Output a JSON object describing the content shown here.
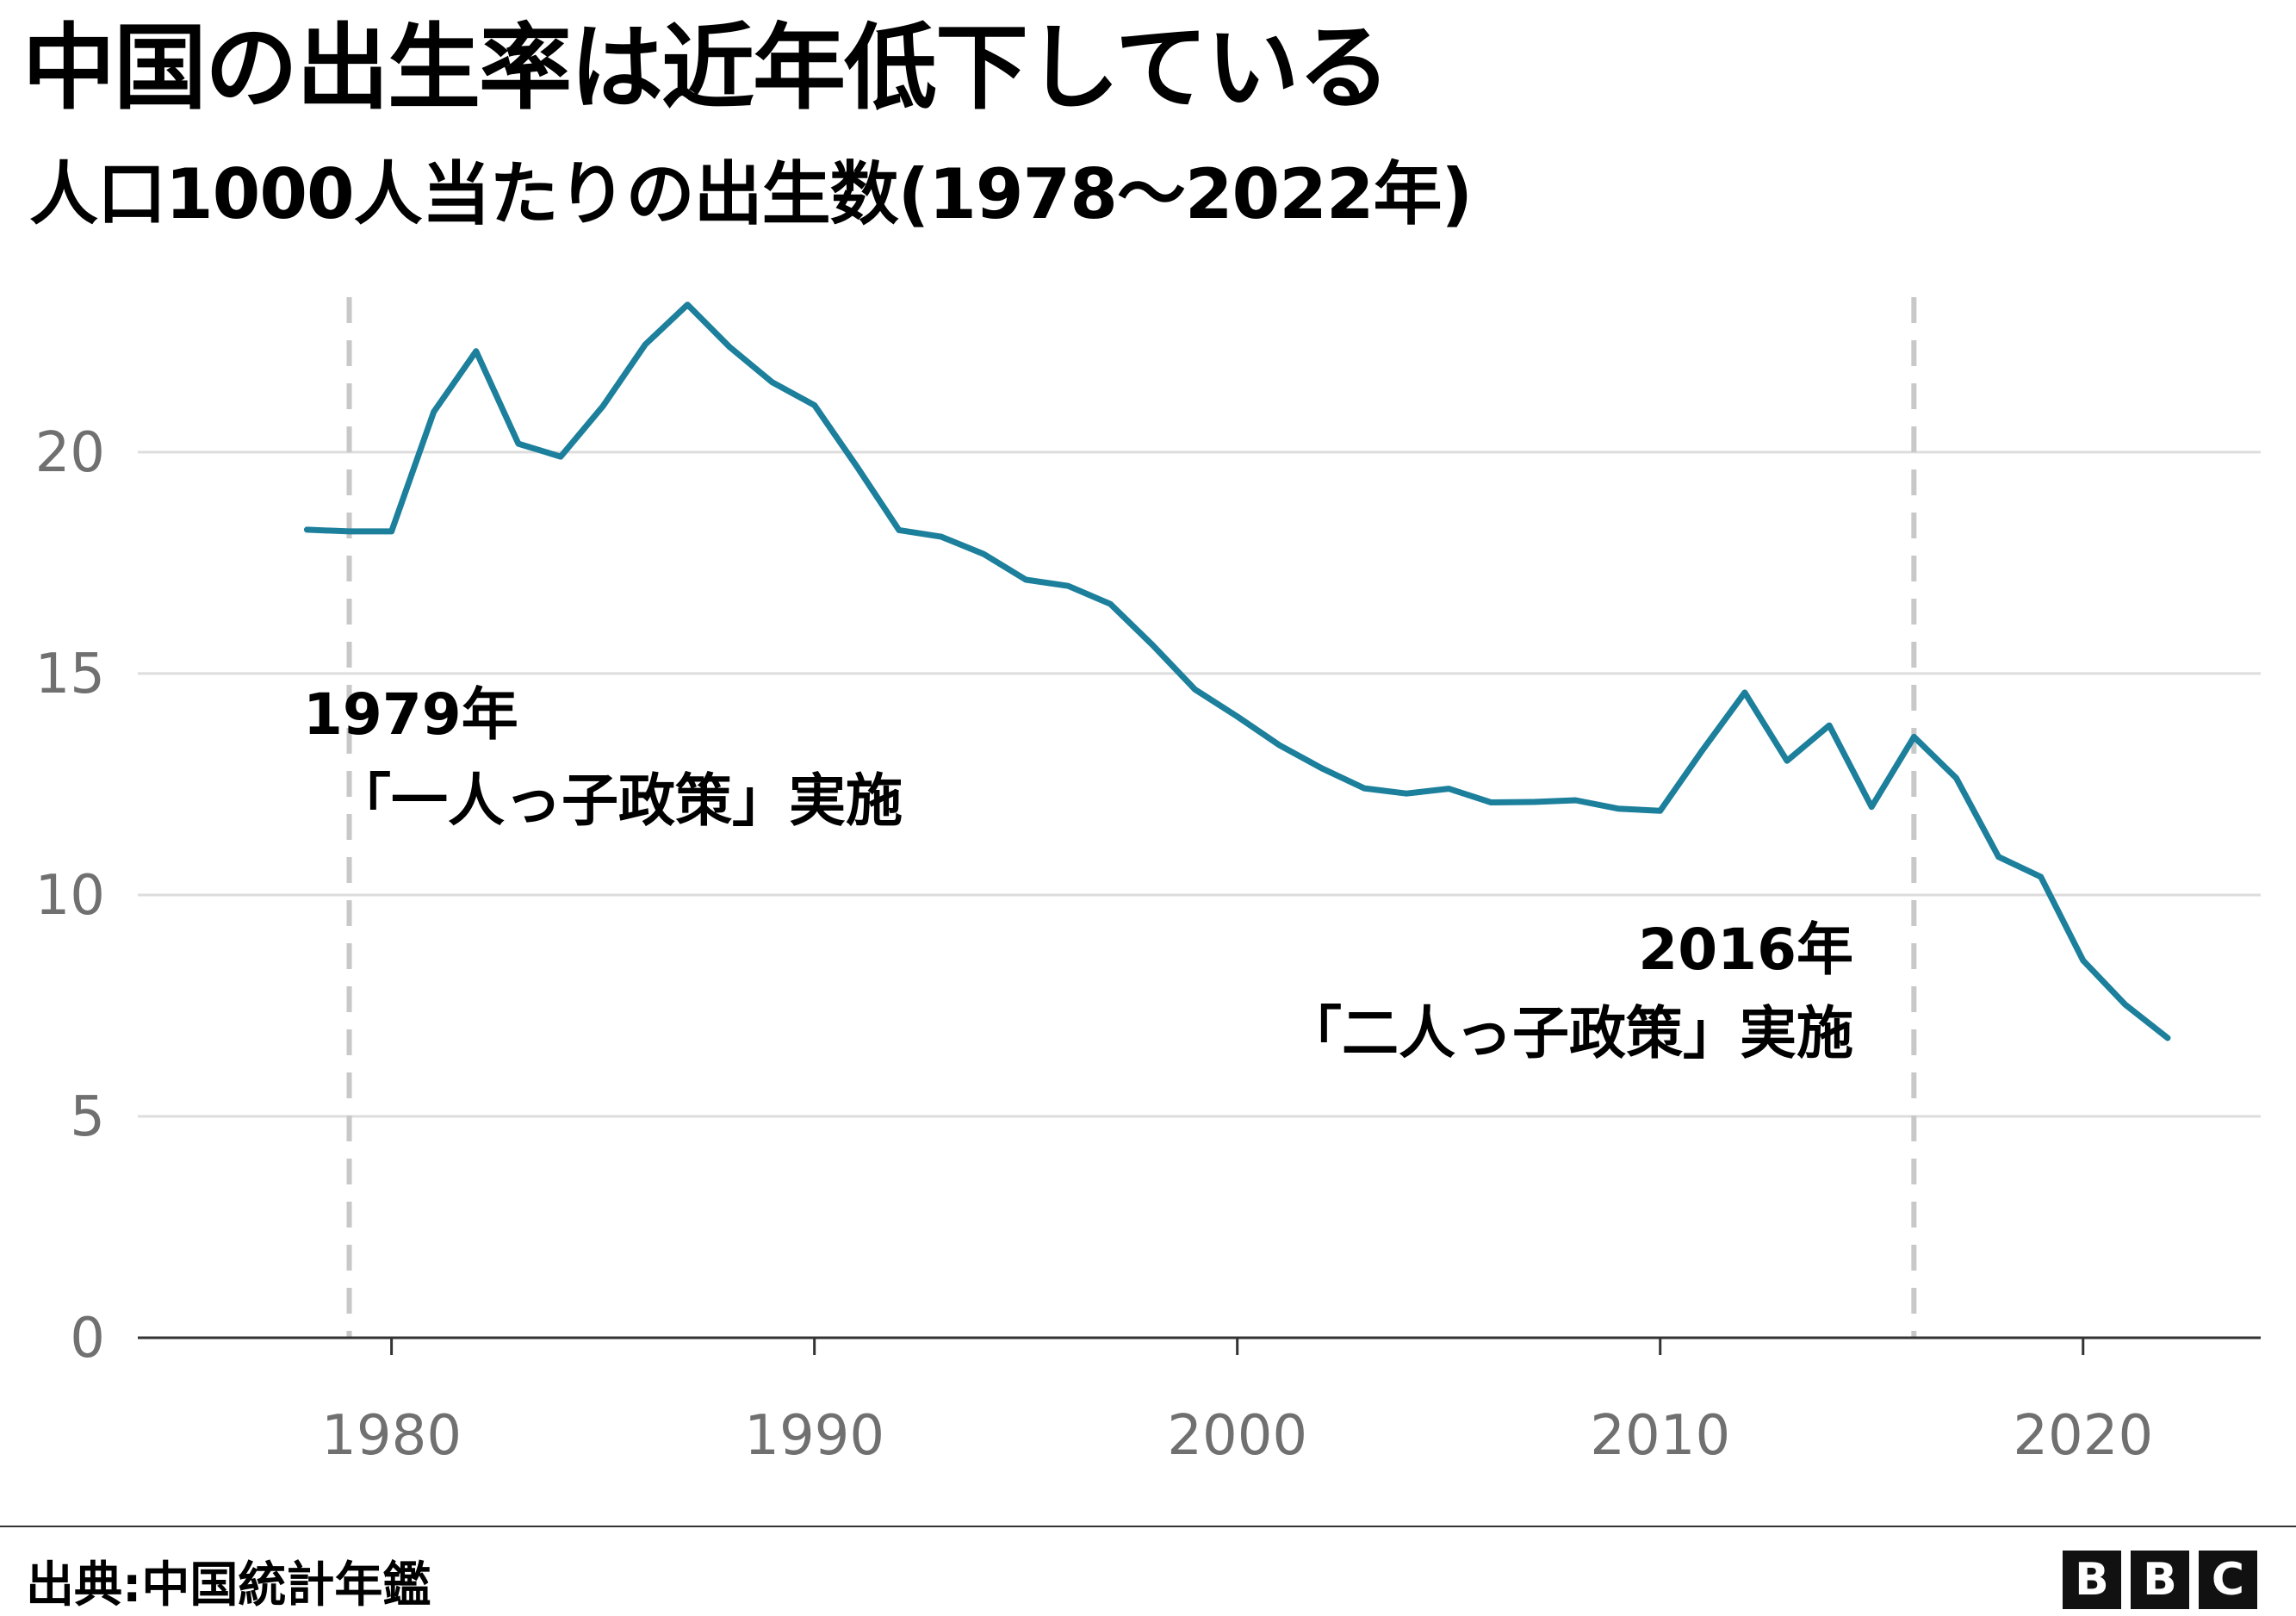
{
  "header": {
    "title": "中国の出生率は近年低下している",
    "subtitle": "人口1000人当たりの出生数(1978〜2022年)"
  },
  "chart_data": {
    "type": "line",
    "title": "中国の出生率は近年低下している",
    "subtitle": "人口1000人当たりの出生数(1978〜2022年)",
    "xlabel": "",
    "ylabel": "",
    "xlim": [
      1974,
      2024.2
    ],
    "ylim": [
      0,
      23.5
    ],
    "x_ticks": [
      1980,
      1990,
      2000,
      2010,
      2020
    ],
    "y_ticks": [
      0,
      5,
      10,
      15,
      20
    ],
    "grid": "horizontal",
    "line_color": "#1c7f9c",
    "series": [
      {
        "x": [
          1978,
          1979,
          1980,
          1981,
          1982,
          1983,
          1984,
          1985,
          1986,
          1987,
          1988,
          1989,
          1990,
          1991,
          1992,
          1993,
          1994,
          1995,
          1996,
          1997,
          1998,
          1999,
          2000,
          2001,
          2002,
          2003,
          2004,
          2005,
          2006,
          2007,
          2008,
          2009,
          2010,
          2011,
          2012,
          2013,
          2014,
          2015,
          2016,
          2017,
          2018,
          2019,
          2020,
          2021,
          2022
        ],
        "values": [
          18.25,
          18.21,
          18.21,
          20.91,
          22.28,
          20.19,
          19.9,
          21.04,
          22.43,
          23.33,
          22.37,
          21.58,
          21.06,
          19.68,
          18.24,
          18.09,
          17.7,
          17.12,
          16.98,
          16.57,
          15.64,
          14.64,
          14.03,
          13.38,
          12.86,
          12.41,
          12.29,
          12.4,
          12.09,
          12.1,
          12.14,
          11.95,
          11.9,
          13.27,
          14.57,
          13.03,
          13.83,
          11.99,
          13.57,
          12.64,
          10.86,
          10.41,
          8.52,
          7.52,
          6.77
        ]
      }
    ],
    "annotations": [
      {
        "x": 1979,
        "line1": "1979年",
        "line2": "「一人っ子政策」実施"
      },
      {
        "x": 2016,
        "line1": "2016年",
        "line2": "「二人っ子政策」実施"
      }
    ]
  },
  "footer": {
    "source": "出典:中国統計年鑑",
    "logo": [
      "B",
      "B",
      "C"
    ]
  }
}
